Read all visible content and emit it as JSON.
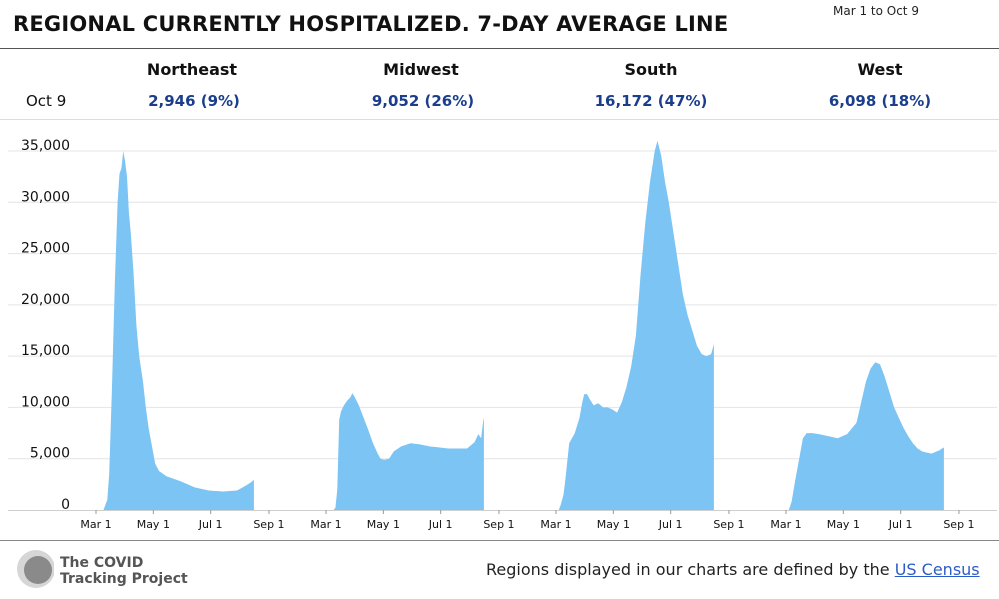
{
  "header": {
    "title": "REGIONAL CURRENTLY HOSPITALIZED. 7-DAY AVERAGE LINE",
    "date_range": "Mar 1 to Oct 9"
  },
  "summary": {
    "date_label": "Oct 9",
    "regions": [
      {
        "name": "Northeast",
        "value_label": "2,946 (9%)"
      },
      {
        "name": "Midwest",
        "value_label": "9,052 (26%)"
      },
      {
        "name": "South",
        "value_label": "16,172 (47%)"
      },
      {
        "name": "West",
        "value_label": "6,098 (18%)"
      }
    ]
  },
  "chart_data": {
    "type": "area",
    "title": "Regional currently hospitalized, 7-day average",
    "x_start": "Mar 1",
    "x_end": "Oct 9",
    "xtick_labels": [
      "Mar 1",
      "May 1",
      "Jul 1",
      "Sep 1"
    ],
    "xtick_days": [
      0,
      61,
      122,
      184
    ],
    "ytick_labels": [
      "0",
      "5,000",
      "10,000",
      "15,000",
      "20,000",
      "25,000",
      "30,000",
      "35,000"
    ],
    "ylim": [
      0,
      35000
    ],
    "color": "#7cc4f4",
    "series": [
      {
        "name": "Northeast",
        "points": [
          [
            0,
            0
          ],
          [
            8,
            0
          ],
          [
            12,
            1000
          ],
          [
            14,
            3500
          ],
          [
            17,
            12000
          ],
          [
            20,
            22000
          ],
          [
            23,
            30000
          ],
          [
            25,
            32800
          ],
          [
            27,
            33300
          ],
          [
            29,
            35000
          ],
          [
            31,
            34000
          ],
          [
            33,
            32500
          ],
          [
            35,
            29000
          ],
          [
            37,
            27000
          ],
          [
            40,
            23000
          ],
          [
            43,
            18000
          ],
          [
            46,
            15000
          ],
          [
            50,
            12500
          ],
          [
            53,
            10000
          ],
          [
            56,
            8000
          ],
          [
            60,
            6000
          ],
          [
            63,
            4500
          ],
          [
            67,
            3800
          ],
          [
            75,
            3300
          ],
          [
            90,
            2800
          ],
          [
            105,
            2200
          ],
          [
            120,
            1900
          ],
          [
            135,
            1800
          ],
          [
            150,
            1900
          ],
          [
            158,
            2300
          ],
          [
            165,
            2700
          ],
          [
            168,
            2946
          ]
        ]
      },
      {
        "name": "Midwest",
        "points": [
          [
            0,
            0
          ],
          [
            8,
            0
          ],
          [
            10,
            200
          ],
          [
            12,
            2000
          ],
          [
            14,
            8800
          ],
          [
            16,
            9600
          ],
          [
            19,
            10200
          ],
          [
            22,
            10600
          ],
          [
            26,
            11000
          ],
          [
            28,
            11400
          ],
          [
            30,
            11100
          ],
          [
            35,
            10200
          ],
          [
            40,
            9000
          ],
          [
            45,
            7800
          ],
          [
            50,
            6500
          ],
          [
            55,
            5500
          ],
          [
            58,
            5000
          ],
          [
            62,
            4900
          ],
          [
            67,
            5000
          ],
          [
            72,
            5700
          ],
          [
            80,
            6200
          ],
          [
            90,
            6500
          ],
          [
            100,
            6400
          ],
          [
            110,
            6200
          ],
          [
            120,
            6100
          ],
          [
            130,
            6000
          ],
          [
            150,
            6000
          ],
          [
            158,
            6600
          ],
          [
            162,
            7400
          ],
          [
            165,
            7000
          ],
          [
            167,
            8500
          ],
          [
            168,
            9052
          ]
        ]
      },
      {
        "name": "South",
        "points": [
          [
            0,
            0
          ],
          [
            3,
            0
          ],
          [
            5,
            500
          ],
          [
            8,
            1500
          ],
          [
            10,
            3000
          ],
          [
            14,
            6500
          ],
          [
            20,
            7500
          ],
          [
            25,
            9000
          ],
          [
            28,
            10500
          ],
          [
            30,
            11300
          ],
          [
            33,
            11300
          ],
          [
            36,
            10800
          ],
          [
            40,
            10200
          ],
          [
            45,
            10400
          ],
          [
            50,
            10000
          ],
          [
            55,
            10000
          ],
          [
            60,
            9800
          ],
          [
            65,
            9500
          ],
          [
            70,
            10500
          ],
          [
            75,
            12000
          ],
          [
            80,
            14000
          ],
          [
            85,
            17000
          ],
          [
            90,
            23000
          ],
          [
            95,
            28000
          ],
          [
            100,
            32000
          ],
          [
            105,
            35000
          ],
          [
            108,
            36000
          ],
          [
            112,
            34500
          ],
          [
            116,
            32000
          ],
          [
            120,
            30000
          ],
          [
            125,
            27000
          ],
          [
            130,
            24000
          ],
          [
            135,
            21000
          ],
          [
            140,
            19000
          ],
          [
            145,
            17500
          ],
          [
            150,
            16000
          ],
          [
            155,
            15200
          ],
          [
            160,
            15000
          ],
          [
            165,
            15200
          ],
          [
            168,
            16172
          ]
        ]
      },
      {
        "name": "West",
        "points": [
          [
            0,
            0
          ],
          [
            3,
            0
          ],
          [
            6,
            800
          ],
          [
            10,
            3000
          ],
          [
            14,
            5000
          ],
          [
            18,
            7000
          ],
          [
            22,
            7500
          ],
          [
            28,
            7500
          ],
          [
            35,
            7400
          ],
          [
            45,
            7200
          ],
          [
            55,
            7000
          ],
          [
            65,
            7400
          ],
          [
            75,
            8500
          ],
          [
            80,
            10500
          ],
          [
            85,
            12500
          ],
          [
            90,
            13800
          ],
          [
            95,
            14400
          ],
          [
            100,
            14200
          ],
          [
            105,
            13000
          ],
          [
            110,
            11500
          ],
          [
            115,
            10000
          ],
          [
            120,
            9000
          ],
          [
            125,
            8000
          ],
          [
            130,
            7200
          ],
          [
            135,
            6500
          ],
          [
            140,
            6000
          ],
          [
            145,
            5700
          ],
          [
            150,
            5600
          ],
          [
            155,
            5500
          ],
          [
            160,
            5700
          ],
          [
            163,
            5800
          ],
          [
            166,
            6000
          ],
          [
            168,
            6098
          ]
        ]
      }
    ]
  },
  "footer": {
    "logo_line1": "The COVID",
    "logo_line2": "Tracking Project",
    "note_text": "Regions displayed in our charts are defined by the ",
    "note_link": "US Census"
  }
}
